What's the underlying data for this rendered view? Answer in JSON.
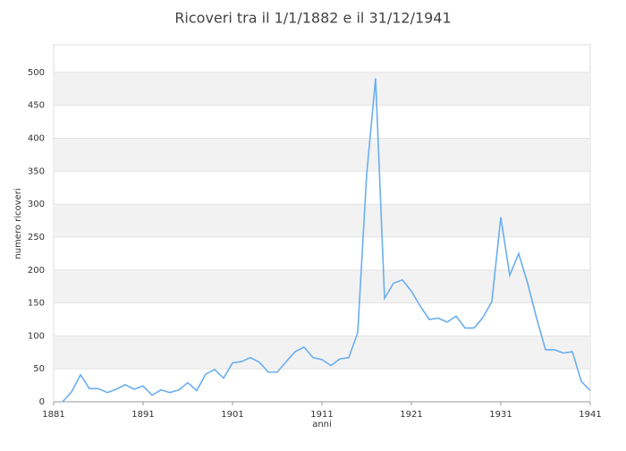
{
  "chart_data": {
    "type": "line",
    "title": "Ricoveri tra il 1/1/1882 e il 31/12/1941",
    "x_label": "anni",
    "y_label": "numero ricoveri",
    "x": [
      1882,
      1883,
      1884,
      1885,
      1886,
      1887,
      1888,
      1889,
      1890,
      1891,
      1892,
      1893,
      1894,
      1895,
      1896,
      1897,
      1898,
      1899,
      1900,
      1901,
      1902,
      1903,
      1904,
      1905,
      1906,
      1907,
      1908,
      1909,
      1910,
      1911,
      1912,
      1913,
      1914,
      1915,
      1916,
      1917,
      1918,
      1919,
      1920,
      1921,
      1922,
      1923,
      1924,
      1925,
      1926,
      1927,
      1928,
      1929,
      1930,
      1931,
      1932,
      1933,
      1934,
      1935,
      1936,
      1937,
      1938,
      1939,
      1940,
      1941
    ],
    "values": [
      0,
      15,
      41,
      20,
      20,
      14,
      19,
      26,
      19,
      24,
      10,
      18,
      14,
      18,
      29,
      17,
      42,
      49,
      36,
      59,
      61,
      67,
      60,
      45,
      45,
      61,
      76,
      83,
      67,
      64,
      55,
      65,
      67,
      105,
      345,
      491,
      157,
      180,
      185,
      168,
      145,
      125,
      127,
      121,
      130,
      112,
      112,
      128,
      152,
      280,
      192,
      225,
      180,
      127,
      79,
      79,
      74,
      76,
      31,
      17
    ],
    "color": "#6aaef0",
    "xlim": [
      1881,
      1941
    ],
    "xticks": [
      1881,
      1891,
      1901,
      1911,
      1921,
      1931,
      1941
    ],
    "ylim": [
      0,
      542
    ],
    "yticks": [
      0,
      50,
      100,
      150,
      200,
      250,
      300,
      350,
      400,
      450,
      500
    ],
    "grid": "banded"
  }
}
